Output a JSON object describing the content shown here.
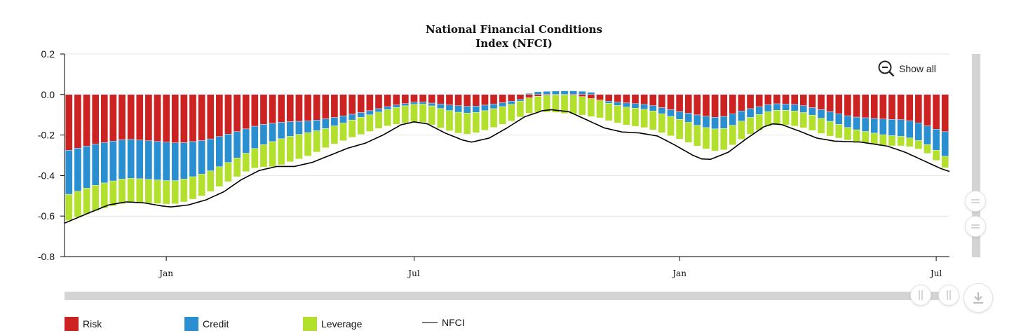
{
  "chart_data": {
    "type": "bar",
    "stacked": true,
    "title_lines": [
      "National Financial Conditions",
      "Index (NFCI)"
    ],
    "ylim": [
      -0.8,
      0.2
    ],
    "yticks": [
      {
        "value": 0.2,
        "label": "0.2"
      },
      {
        "value": 0.0,
        "label": "0.0"
      },
      {
        "value": -0.2,
        "label": "-0.2"
      },
      {
        "value": -0.4,
        "label": "-0.4"
      },
      {
        "value": -0.6,
        "label": "-0.6"
      },
      {
        "value": -0.8,
        "label": "-0.8"
      }
    ],
    "xlim": [
      0,
      100
    ],
    "xticks": [
      {
        "value": 11.5,
        "label": "Jan"
      },
      {
        "value": 39.5,
        "label": "Jul"
      },
      {
        "value": 69.5,
        "label": "Jan"
      },
      {
        "value": 98.5,
        "label": "Jul"
      }
    ],
    "grid": true,
    "colors": {
      "risk": "#cc2222",
      "credit": "#2a8fd0",
      "leverage": "#b2e02c",
      "nfci": "#000000"
    },
    "series": [
      {
        "name": "Risk",
        "type": "bar",
        "color": "#cc2222",
        "keyframes": [
          [
            0,
            -0.28
          ],
          [
            4,
            -0.24
          ],
          [
            7,
            -0.22
          ],
          [
            10,
            -0.23
          ],
          [
            13,
            -0.24
          ],
          [
            16,
            -0.225
          ],
          [
            19,
            -0.19
          ],
          [
            22,
            -0.15
          ],
          [
            25,
            -0.135
          ],
          [
            28,
            -0.13
          ],
          [
            31,
            -0.11
          ],
          [
            34,
            -0.085
          ],
          [
            37,
            -0.055
          ],
          [
            40,
            -0.035
          ],
          [
            43,
            -0.05
          ],
          [
            46,
            -0.06
          ],
          [
            49,
            -0.045
          ],
          [
            52,
            -0.02
          ],
          [
            54,
            -0.005
          ],
          [
            56,
            0
          ],
          [
            58,
            -0.005
          ],
          [
            60,
            -0.025
          ],
          [
            63,
            -0.04
          ],
          [
            66,
            -0.05
          ],
          [
            69,
            -0.08
          ],
          [
            72,
            -0.105
          ],
          [
            74,
            -0.115
          ],
          [
            77,
            -0.075
          ],
          [
            80,
            -0.045
          ],
          [
            83,
            -0.05
          ],
          [
            86,
            -0.08
          ],
          [
            89,
            -0.11
          ],
          [
            92,
            -0.12
          ],
          [
            95,
            -0.125
          ],
          [
            97,
            -0.145
          ],
          [
            98,
            -0.165
          ],
          [
            100,
            -0.19
          ]
        ]
      },
      {
        "name": "Credit",
        "type": "bar",
        "color": "#2a8fd0",
        "keyframes": [
          [
            0,
            -0.22
          ],
          [
            3,
            -0.205
          ],
          [
            6,
            -0.195
          ],
          [
            9,
            -0.19
          ],
          [
            12,
            -0.19
          ],
          [
            15,
            -0.17
          ],
          [
            18,
            -0.145
          ],
          [
            21,
            -0.115
          ],
          [
            24,
            -0.085
          ],
          [
            27,
            -0.06
          ],
          [
            30,
            -0.045
          ],
          [
            33,
            -0.025
          ],
          [
            36,
            -0.015
          ],
          [
            39,
            -0.01
          ],
          [
            41,
            -0.01
          ],
          [
            43,
            -0.025
          ],
          [
            45,
            -0.035
          ],
          [
            47,
            -0.03
          ],
          [
            49,
            -0.02
          ],
          [
            51,
            -0.015
          ],
          [
            53,
            0.012
          ],
          [
            54,
            0.015
          ],
          [
            55,
            0.016
          ],
          [
            56,
            0.018
          ],
          [
            57,
            0.018
          ],
          [
            58,
            0.018
          ],
          [
            59,
            0.014
          ],
          [
            60,
            0.008
          ],
          [
            61,
            -0.008
          ],
          [
            63,
            -0.02
          ],
          [
            66,
            -0.025
          ],
          [
            69,
            -0.035
          ],
          [
            72,
            -0.055
          ],
          [
            75,
            -0.06
          ],
          [
            78,
            -0.04
          ],
          [
            81,
            -0.03
          ],
          [
            84,
            -0.035
          ],
          [
            87,
            -0.05
          ],
          [
            90,
            -0.065
          ],
          [
            93,
            -0.08
          ],
          [
            96,
            -0.085
          ],
          [
            98,
            -0.095
          ],
          [
            100,
            -0.13
          ]
        ]
      },
      {
        "name": "Leverage",
        "type": "bar",
        "color": "#b2e02c",
        "keyframes": [
          [
            0,
            -0.13
          ],
          [
            4,
            -0.125
          ],
          [
            8,
            -0.12
          ],
          [
            12,
            -0.115
          ],
          [
            15,
            -0.11
          ],
          [
            18,
            -0.095
          ],
          [
            21,
            -0.09
          ],
          [
            24,
            -0.13
          ],
          [
            27,
            -0.12
          ],
          [
            30,
            -0.09
          ],
          [
            33,
            -0.085
          ],
          [
            36,
            -0.08
          ],
          [
            39,
            -0.085
          ],
          [
            42,
            -0.095
          ],
          [
            45,
            -0.105
          ],
          [
            48,
            -0.095
          ],
          [
            51,
            -0.08
          ],
          [
            53,
            -0.075
          ],
          [
            55,
            -0.085
          ],
          [
            57,
            -0.095
          ],
          [
            59,
            -0.09
          ],
          [
            62,
            -0.085
          ],
          [
            65,
            -0.09
          ],
          [
            68,
            -0.095
          ],
          [
            71,
            -0.1
          ],
          [
            74,
            -0.11
          ],
          [
            77,
            -0.085
          ],
          [
            80,
            -0.07
          ],
          [
            83,
            -0.075
          ],
          [
            86,
            -0.075
          ],
          [
            89,
            -0.06
          ],
          [
            92,
            -0.055
          ],
          [
            95,
            -0.045
          ],
          [
            97,
            -0.04
          ],
          [
            100,
            -0.06
          ]
        ]
      },
      {
        "name": "NFCI",
        "type": "line",
        "color": "#000000",
        "keyframes": [
          [
            0,
            -0.635
          ],
          [
            3,
            -0.58
          ],
          [
            5,
            -0.545
          ],
          [
            7,
            -0.53
          ],
          [
            9,
            -0.535
          ],
          [
            11,
            -0.55
          ],
          [
            12,
            -0.555
          ],
          [
            14,
            -0.545
          ],
          [
            16,
            -0.52
          ],
          [
            18,
            -0.48
          ],
          [
            20,
            -0.42
          ],
          [
            22,
            -0.375
          ],
          [
            24,
            -0.355
          ],
          [
            26,
            -0.355
          ],
          [
            28,
            -0.335
          ],
          [
            30,
            -0.3
          ],
          [
            32,
            -0.265
          ],
          [
            34,
            -0.24
          ],
          [
            36,
            -0.2
          ],
          [
            38,
            -0.15
          ],
          [
            39.5,
            -0.135
          ],
          [
            41,
            -0.145
          ],
          [
            43,
            -0.19
          ],
          [
            45,
            -0.225
          ],
          [
            46,
            -0.235
          ],
          [
            48,
            -0.215
          ],
          [
            50,
            -0.165
          ],
          [
            52,
            -0.11
          ],
          [
            54,
            -0.08
          ],
          [
            55,
            -0.075
          ],
          [
            57,
            -0.085
          ],
          [
            59,
            -0.125
          ],
          [
            61,
            -0.165
          ],
          [
            63,
            -0.185
          ],
          [
            65,
            -0.19
          ],
          [
            67,
            -0.205
          ],
          [
            69,
            -0.25
          ],
          [
            71,
            -0.3
          ],
          [
            72,
            -0.318
          ],
          [
            73,
            -0.32
          ],
          [
            75,
            -0.285
          ],
          [
            77,
            -0.22
          ],
          [
            79,
            -0.16
          ],
          [
            80,
            -0.145
          ],
          [
            81,
            -0.148
          ],
          [
            83,
            -0.18
          ],
          [
            85,
            -0.215
          ],
          [
            87,
            -0.23
          ],
          [
            90,
            -0.235
          ],
          [
            93,
            -0.255
          ],
          [
            95,
            -0.285
          ],
          [
            97,
            -0.325
          ],
          [
            99,
            -0.365
          ],
          [
            100,
            -0.38
          ]
        ]
      }
    ],
    "legend": [
      {
        "label": "Risk",
        "color": "#cc2222",
        "kind": "swatch"
      },
      {
        "label": "Credit",
        "color": "#2a8fd0",
        "kind": "swatch"
      },
      {
        "label": "Leverage",
        "color": "#b2e02c",
        "kind": "swatch"
      },
      {
        "label": "NFCI",
        "color": "#000000",
        "kind": "line"
      }
    ],
    "legend_position": "bottom-left"
  },
  "controls": {
    "show_all_label": "Show all",
    "show_all_icon": "zoom-out-icon",
    "vertical_grips_icon": "equals-grip-icon",
    "horizontal_grips_icon": "bars-grip-icon",
    "download_icon": "download-icon"
  }
}
